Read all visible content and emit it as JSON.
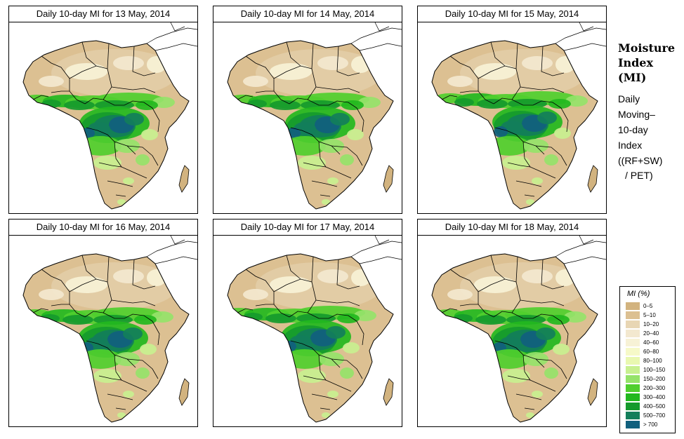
{
  "panels": [
    {
      "title": "Daily 10-day MI for 13 May, 2014"
    },
    {
      "title": "Daily 10-day MI for 14 May, 2014"
    },
    {
      "title": "Daily 10-day MI for 15 May, 2014"
    },
    {
      "title": "Daily 10-day MI for 16 May, 2014"
    },
    {
      "title": "Daily 10-day MI for 17 May, 2014"
    },
    {
      "title": "Daily 10-day MI for 18 May, 2014"
    }
  ],
  "sidebar": {
    "title_lines": [
      "Moisture",
      "Index",
      "(MI)"
    ],
    "desc_lines": [
      "Daily",
      "Moving–",
      "10-day",
      "Index"
    ],
    "formula_lines": [
      "((RF+SW)",
      "/ PET)"
    ]
  },
  "legend": {
    "title": "MI (%)",
    "items": [
      {
        "label": "0–5",
        "color": "#d2b37f"
      },
      {
        "label": "5–10",
        "color": "#dcc092"
      },
      {
        "label": "10–20",
        "color": "#e8d6b4"
      },
      {
        "label": "20–40",
        "color": "#f3e8cf"
      },
      {
        "label": "40–60",
        "color": "#f7f2d6"
      },
      {
        "label": "60–80",
        "color": "#f6f9c8"
      },
      {
        "label": "80–100",
        "color": "#e9f8b0"
      },
      {
        "label": "100–150",
        "color": "#c8f090"
      },
      {
        "label": "150–200",
        "color": "#95e36a"
      },
      {
        "label": "200–300",
        "color": "#4fcf2e"
      },
      {
        "label": "300–400",
        "color": "#22b81e"
      },
      {
        "label": "400–500",
        "color": "#159a2c"
      },
      {
        "label": "500–700",
        "color": "#127e5a"
      },
      {
        "label": "> 700",
        "color": "#11607e"
      }
    ]
  }
}
